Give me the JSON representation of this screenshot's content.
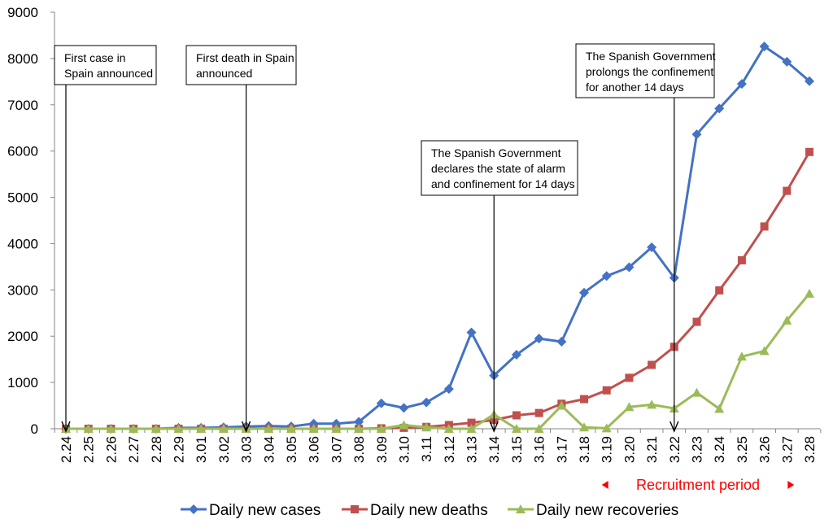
{
  "chart_data": {
    "type": "line",
    "ylim": [
      0,
      9000
    ],
    "yticks": [
      0,
      1000,
      2000,
      3000,
      4000,
      5000,
      6000,
      7000,
      8000,
      9000
    ],
    "grid": false,
    "legend_position": "bottom",
    "categories": [
      "2.24",
      "2.25",
      "2.26",
      "2.27",
      "2.28",
      "2.29",
      "3.01",
      "3.02",
      "3.03",
      "3.04",
      "3.05",
      "3.06",
      "3.07",
      "3.08",
      "3.09",
      "3.10",
      "3.11",
      "3.12",
      "3.13",
      "3.14",
      "3.15",
      "3.16",
      "3.17",
      "3.18",
      "3.19",
      "3.20",
      "3.21",
      "3.22",
      "3.23",
      "3.24",
      "3.25",
      "3.26",
      "3.27",
      "3.28"
    ],
    "series": [
      {
        "name": "Daily new cases",
        "color": "#4472c4",
        "marker": "diamond",
        "values": [
          0,
          0,
          0,
          0,
          0,
          20,
          20,
          30,
          50,
          60,
          50,
          110,
          110,
          150,
          550,
          450,
          570,
          860,
          2080,
          1150,
          1600,
          1950,
          1880,
          2940,
          3300,
          3490,
          3920,
          3260,
          6360,
          6920,
          7450,
          8260,
          7930,
          7510
        ]
      },
      {
        "name": "Daily new deaths",
        "color": "#c0504d",
        "marker": "square",
        "values": [
          0,
          0,
          0,
          0,
          0,
          0,
          0,
          0,
          0,
          0,
          0,
          0,
          0,
          0,
          10,
          20,
          40,
          80,
          130,
          190,
          290,
          340,
          540,
          640,
          830,
          1100,
          1380,
          1770,
          2310,
          2990,
          3640,
          4370,
          5140,
          5980
        ]
      },
      {
        "name": "Daily new recoveries",
        "color": "#9bbb59",
        "marker": "triangle",
        "values": [
          0,
          0,
          0,
          0,
          0,
          0,
          0,
          0,
          0,
          0,
          0,
          0,
          0,
          0,
          0,
          80,
          30,
          0,
          0,
          310,
          0,
          0,
          500,
          30,
          10,
          470,
          520,
          440,
          780,
          430,
          1560,
          1680,
          2340,
          2920
        ]
      }
    ],
    "annotations": [
      {
        "lines": [
          "First case in",
          "Spain announced"
        ],
        "category": "2.24"
      },
      {
        "lines": [
          "First death in Spain",
          "announced"
        ],
        "category": "3.03"
      },
      {
        "lines": [
          "The Spanish Government",
          "declares the state of alarm",
          "and confinement for 14 days"
        ],
        "category": "3.14"
      },
      {
        "lines": [
          "The Spanish Government",
          "prolongs the confinement",
          "for another 14 days"
        ],
        "category": "3.22"
      }
    ],
    "recruitment": {
      "label": "Recruitment period",
      "from": "3.19",
      "to": "3.27",
      "color": "#ff0000"
    }
  }
}
